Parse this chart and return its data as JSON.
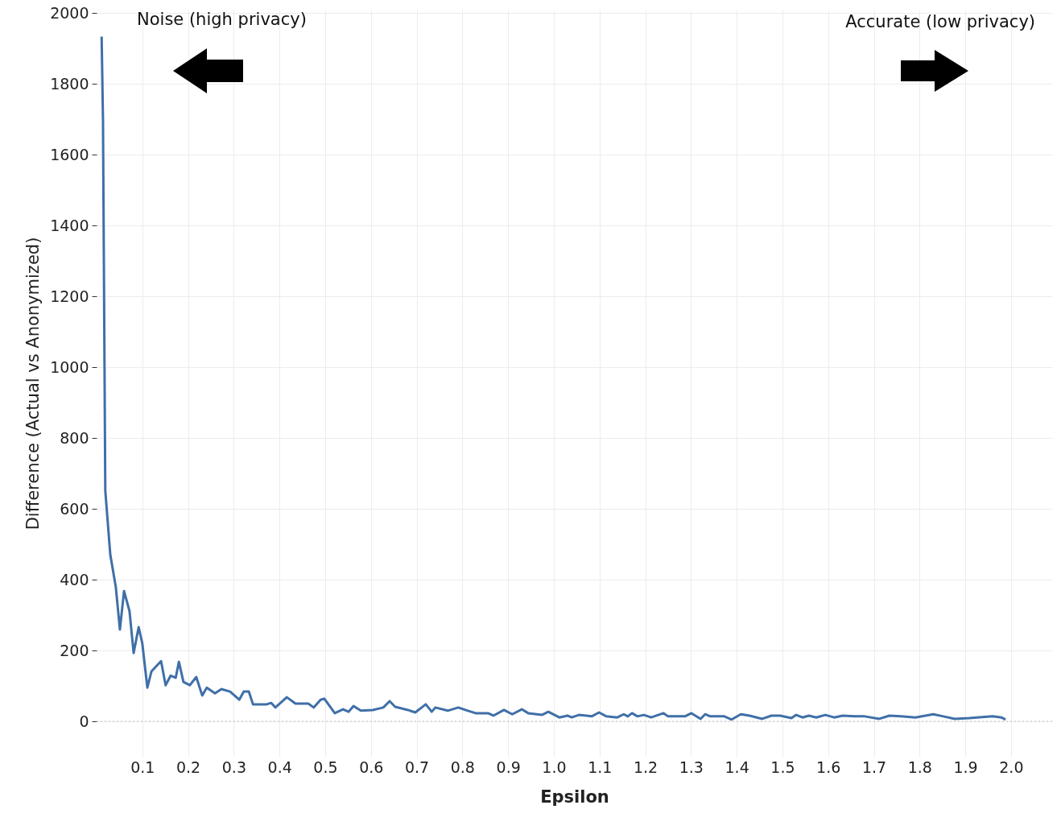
{
  "chart_data": {
    "type": "line",
    "xlabel": "Epsilon",
    "ylabel": "Difference (Actual vs Anonymized)",
    "annotations": [
      "Noise (high privacy)",
      "Accurate (low privacy)"
    ],
    "xlim": [
      0,
      2.09
    ],
    "ylim": [
      -100,
      2010
    ],
    "xticks": [
      0.1,
      0.2,
      0.3,
      0.4,
      0.5,
      0.6,
      0.7,
      0.8,
      0.9,
      {
        "value": 1,
        "label": "1.0"
      },
      1.1,
      1.2,
      1.3,
      1.4,
      1.5,
      1.6,
      1.7,
      1.8,
      1.9,
      {
        "value": 2,
        "label": "2.0"
      }
    ],
    "yticks": [
      0,
      200,
      400,
      600,
      800,
      1000,
      1200,
      1400,
      1600,
      1800,
      2000
    ],
    "grid": true,
    "ref_lines": [
      {
        "axis": "y",
        "value": 0,
        "color": "#c0c0c0",
        "line_style": "dotted"
      }
    ],
    "series": [
      {
        "color": "#3f6fa8",
        "x": [
          0.011,
          0.014,
          0.019,
          0.03,
          0.042,
          0.051,
          0.06,
          0.072,
          0.081,
          0.092,
          0.1,
          0.111,
          0.12,
          0.141,
          0.151,
          0.162,
          0.173,
          0.18,
          0.19,
          0.204,
          0.218,
          0.231,
          0.241,
          0.259,
          0.273,
          0.292,
          0.312,
          0.322,
          0.333,
          0.342,
          0.372,
          0.382,
          0.391,
          0.416,
          0.435,
          0.463,
          0.475,
          0.49,
          0.498,
          0.521,
          0.539,
          0.551,
          0.562,
          0.578,
          0.604,
          0.627,
          0.641,
          0.653,
          0.681,
          0.697,
          0.72,
          0.733,
          0.741,
          0.768,
          0.791,
          0.812,
          0.829,
          0.856,
          0.868,
          0.891,
          0.909,
          0.93,
          0.944,
          0.974,
          0.988,
          1.012,
          1.03,
          1.039,
          1.055,
          1.083,
          1.099,
          1.115,
          1.139,
          1.153,
          1.162,
          1.171,
          1.183,
          1.197,
          1.213,
          1.24,
          1.25,
          1.287,
          1.301,
          1.321,
          1.331,
          1.342,
          1.373,
          1.389,
          1.409,
          1.428,
          1.456,
          1.476,
          1.495,
          1.52,
          1.53,
          1.544,
          1.558,
          1.574,
          1.594,
          1.613,
          1.632,
          1.657,
          1.68,
          1.712,
          1.734,
          1.759,
          1.791,
          1.83,
          1.852,
          1.877,
          1.909,
          1.96,
          1.979,
          1.988
        ],
        "values": [
          1934,
          1696,
          651,
          470,
          379,
          259,
          368,
          311,
          193,
          266,
          220,
          95,
          141,
          170,
          102,
          129,
          123,
          168,
          111,
          102,
          125,
          73,
          95,
          79,
          91,
          84,
          61,
          84,
          84,
          48,
          48,
          52,
          39,
          68,
          50,
          50,
          39,
          61,
          64,
          23,
          34,
          27,
          43,
          30,
          32,
          39,
          57,
          41,
          32,
          25,
          48,
          27,
          39,
          30,
          39,
          30,
          23,
          23,
          16,
          32,
          20,
          34,
          23,
          18,
          27,
          11,
          16,
          11,
          18,
          14,
          25,
          14,
          11,
          20,
          14,
          23,
          14,
          18,
          11,
          23,
          14,
          14,
          23,
          7,
          20,
          14,
          14,
          5,
          20,
          16,
          7,
          16,
          16,
          9,
          18,
          11,
          16,
          11,
          18,
          11,
          16,
          14,
          14,
          7,
          16,
          14,
          11,
          20,
          14,
          7,
          9,
          14,
          11,
          5
        ]
      }
    ]
  }
}
